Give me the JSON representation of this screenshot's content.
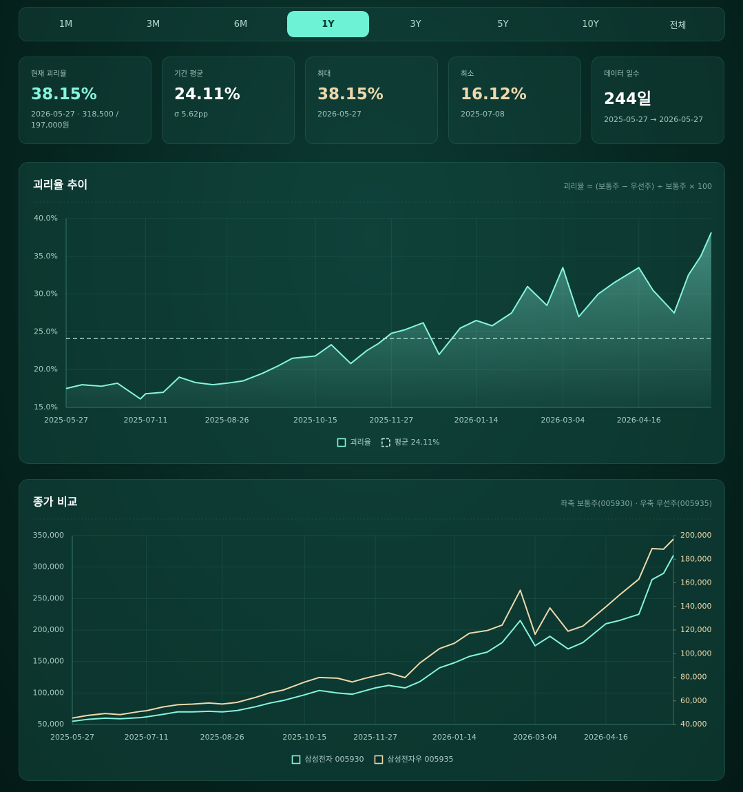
{
  "range_tabs": [
    "1M",
    "3M",
    "6M",
    "1Y",
    "3Y",
    "5Y",
    "10Y",
    "전체"
  ],
  "active_tab_index": 3,
  "stats": [
    {
      "label": "현재 괴리율",
      "value": "38.15%",
      "sub": "2026-05-27 · 318,500 / 197,000원",
      "color": "#86f5de"
    },
    {
      "label": "기간 평균",
      "value": "24.11%",
      "sub": "σ 5.62pp",
      "color": "#ffffff"
    },
    {
      "label": "최대",
      "value": "38.15%",
      "sub": "2026-05-27",
      "color": "#eed9ad"
    },
    {
      "label": "최소",
      "value": "16.12%",
      "sub": "2025-07-08",
      "color": "#eed9ad"
    },
    {
      "label": "데이터 일수",
      "value": "244일",
      "sub": "2025-05-27 → 2026-05-27",
      "color": "#ffffff"
    }
  ],
  "chart_data": [
    {
      "type": "area",
      "title": "괴리율 추이",
      "subtitle": "괴리율 = (보통주 − 우선주) ÷ 보통주 × 100",
      "x": [
        "2025-05-27",
        "2025-06-05",
        "2025-06-16",
        "2025-06-25",
        "2025-07-08",
        "2025-07-11",
        "2025-07-21",
        "2025-07-30",
        "2025-08-08",
        "2025-08-18",
        "2025-08-26",
        "2025-09-04",
        "2025-09-15",
        "2025-09-24",
        "2025-10-02",
        "2025-10-15",
        "2025-10-24",
        "2025-11-04",
        "2025-11-13",
        "2025-11-20",
        "2025-11-27",
        "2025-12-05",
        "2025-12-15",
        "2025-12-24",
        "2026-01-05",
        "2026-01-14",
        "2026-01-23",
        "2026-02-03",
        "2026-02-12",
        "2026-02-23",
        "2026-03-04",
        "2026-03-13",
        "2026-03-24",
        "2026-04-02",
        "2026-04-16",
        "2026-04-24",
        "2026-05-06",
        "2026-05-14",
        "2026-05-21",
        "2026-05-27"
      ],
      "series": [
        {
          "name": "괴리율",
          "color": "#86f5de",
          "values": [
            17.5,
            18,
            17.8,
            18.2,
            16.12,
            16.8,
            17,
            19,
            18.3,
            18,
            18.2,
            18.5,
            19.5,
            20.5,
            21.5,
            21.8,
            23.3,
            20.8,
            22.5,
            23.5,
            24.8,
            25.3,
            26.2,
            22,
            25.5,
            26.5,
            25.8,
            27.5,
            31,
            28.5,
            33.5,
            27,
            30,
            31.5,
            33.5,
            30.5,
            27.5,
            32.5,
            35,
            38.15
          ]
        }
      ],
      "reference_lines": [
        {
          "name": "평균 24.11%",
          "value": 24.11,
          "color": "#b9e8df"
        }
      ],
      "xlim": [
        "2025-05-27",
        "2026-05-27"
      ],
      "xticks": [
        "2025-05-27",
        "2025-07-11",
        "2025-08-26",
        "2025-10-15",
        "2025-11-27",
        "2026-01-14",
        "2026-03-04",
        "2026-04-16"
      ],
      "ylim": [
        15,
        40
      ],
      "yticks": [
        {
          "value": 15,
          "label": "15.0%"
        },
        {
          "value": 20,
          "label": "20.0%"
        },
        {
          "value": 25,
          "label": "25.0%"
        },
        {
          "value": 30,
          "label": "30.0%"
        },
        {
          "value": 35,
          "label": "35.0%"
        },
        {
          "value": 40,
          "label": "40.0%"
        }
      ],
      "grid": true
    },
    {
      "type": "line",
      "title": "종가 비교",
      "subtitle": "좌축 보통주(005930) · 우축 우선주(005935)",
      "x": [
        "2025-05-27",
        "2025-06-05",
        "2025-06-16",
        "2025-06-25",
        "2025-07-08",
        "2025-07-11",
        "2025-07-21",
        "2025-07-30",
        "2025-08-08",
        "2025-08-18",
        "2025-08-26",
        "2025-09-04",
        "2025-09-15",
        "2025-09-24",
        "2025-10-02",
        "2025-10-15",
        "2025-10-24",
        "2025-11-04",
        "2025-11-13",
        "2025-11-20",
        "2025-11-27",
        "2025-12-05",
        "2025-12-15",
        "2025-12-24",
        "2026-01-05",
        "2026-01-14",
        "2026-01-23",
        "2026-02-03",
        "2026-02-12",
        "2026-02-23",
        "2026-03-04",
        "2026-03-13",
        "2026-03-24",
        "2026-04-02",
        "2026-04-16",
        "2026-04-24",
        "2026-05-06",
        "2026-05-14",
        "2026-05-21",
        "2026-05-27"
      ],
      "series": [
        {
          "name": "삼성전자 005930",
          "color": "#86f5de",
          "values": [
            55000,
            58000,
            60000,
            59000,
            61000,
            62000,
            66000,
            70000,
            70000,
            71000,
            70000,
            72000,
            78000,
            84000,
            88000,
            97000,
            104000,
            100000,
            98000,
            103000,
            108000,
            112000,
            108000,
            118000,
            140000,
            148000,
            158000,
            165000,
            180000,
            215000,
            175000,
            190000,
            170000,
            180000,
            210000,
            215000,
            225000,
            280000,
            290000,
            318500
          ]
        },
        {
          "name": "삼성전자우 005935",
          "color": "#eed9ad",
          "axis": "y2",
          "values": [
            45400,
            47600,
            49300,
            48300,
            51200,
            51600,
            54800,
            56700,
            57200,
            58200,
            57300,
            58700,
            62800,
            66800,
            69100,
            75900,
            79800,
            79200,
            76000,
            78800,
            81200,
            83700,
            79700,
            92000,
            104300,
            108800,
            117200,
            119600,
            124200,
            153700,
            116400,
            138700,
            119000,
            123300,
            139700,
            149400,
            163100,
            189000,
            188500,
            197000
          ]
        }
      ],
      "xlim": [
        "2025-05-27",
        "2026-05-27"
      ],
      "xticks": [
        "2025-05-27",
        "2025-07-11",
        "2025-08-26",
        "2025-10-15",
        "2025-11-27",
        "2026-01-14",
        "2026-03-04",
        "2026-04-16"
      ],
      "ylim": [
        50000,
        350000
      ],
      "yticks": [
        {
          "value": 50000,
          "label": "50,000"
        },
        {
          "value": 100000,
          "label": "100,000"
        },
        {
          "value": 150000,
          "label": "150,000"
        },
        {
          "value": 200000,
          "label": "200,000"
        },
        {
          "value": 250000,
          "label": "250,000"
        },
        {
          "value": 300000,
          "label": "300,000"
        },
        {
          "value": 350000,
          "label": "350,000"
        }
      ],
      "y2lim": [
        40000,
        200000
      ],
      "y2ticks": [
        {
          "value": 40000,
          "label": "40,000"
        },
        {
          "value": 60000,
          "label": "60,000"
        },
        {
          "value": 80000,
          "label": "80,000"
        },
        {
          "value": 100000,
          "label": "100,000"
        },
        {
          "value": 120000,
          "label": "120,000"
        },
        {
          "value": 140000,
          "label": "140,000"
        },
        {
          "value": 160000,
          "label": "160,000"
        },
        {
          "value": 180000,
          "label": "180,000"
        },
        {
          "value": 200000,
          "label": "200,000"
        }
      ],
      "grid": true
    }
  ]
}
